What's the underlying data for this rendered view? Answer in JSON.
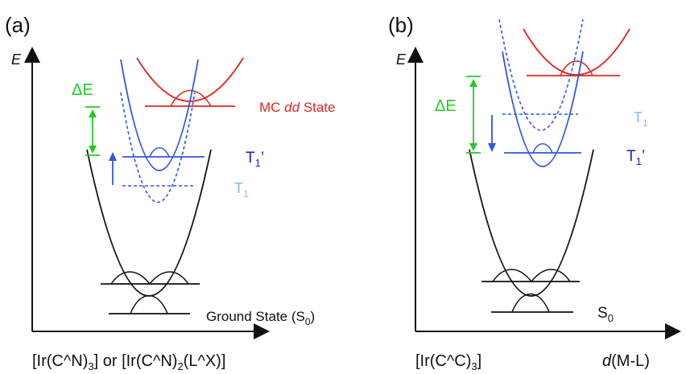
{
  "colors": {
    "black": "#111111",
    "blue": "#2f56e8",
    "light_blue": "#8fb6e6",
    "red": "#e0261f",
    "green": "#22cc22",
    "dark_blue": "#1b22c8"
  },
  "panel_a": {
    "label": "(a)",
    "axis_y_label": "E",
    "delta_e": "ΔE",
    "mc_state_prefix": "MC ",
    "mc_state_italic": "dd",
    "mc_state_suffix": " State",
    "t1_prime_main": "T",
    "t1_prime_sub": "1",
    "t1_prime_mark": "’",
    "t1_main": "T",
    "t1_sub": "1",
    "ground_state_main": "Ground State (S",
    "ground_state_sub": "0",
    "ground_state_close": ")",
    "caption_p1": "[Ir(C^N)",
    "caption_s1": "3",
    "caption_p2": "] or [Ir(C^N)",
    "caption_s2": "2",
    "caption_p3": "(L^X)]"
  },
  "panel_b": {
    "label": "(b)",
    "axis_y_label": "E",
    "delta_e": "ΔE",
    "t1_main": "T",
    "t1_sub": "1",
    "t1_prime_main": "T",
    "t1_prime_sub": "1",
    "t1_prime_mark": "’",
    "s0_main": "S",
    "s0_sub": "0",
    "caption_p1": "[Ir(C^C)",
    "caption_s1": "3",
    "caption_p2": "]",
    "x_axis_italic": "d",
    "x_axis_rest": "(M-L)"
  }
}
